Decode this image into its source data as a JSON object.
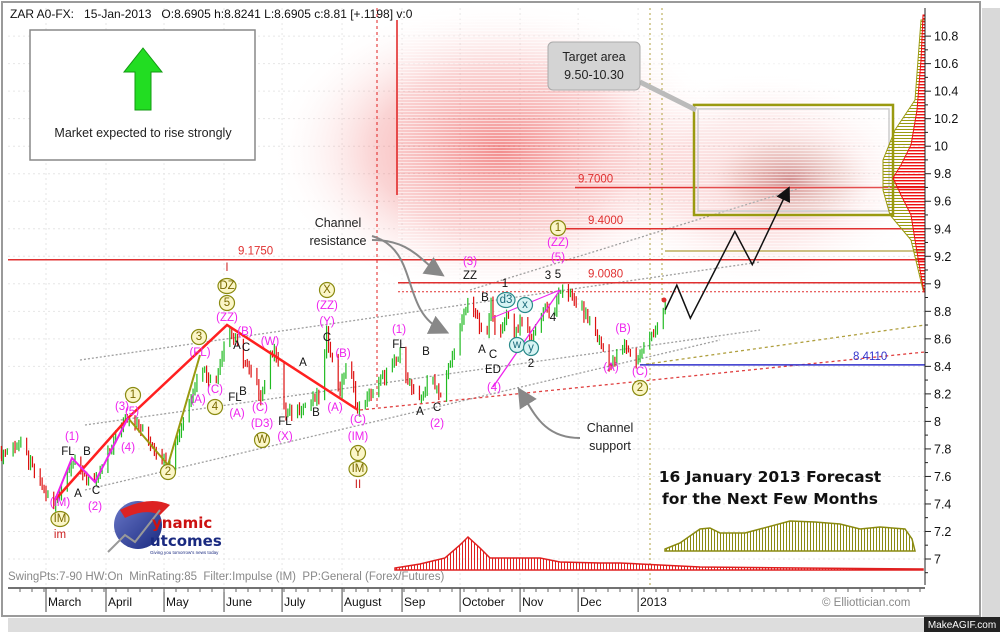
{
  "header": {
    "text": "ZAR A0-FX:   15-Jan-2013   O:8.6905 h:8.8241 L:8.6905 c:8.81 [+.1198] v:0"
  },
  "footer": {
    "settings": "SwingPts:7-90 HW:On  MinRating:85  Filter:Impulse (IM)  PP:General (Forex/Futures)",
    "copyright": "© Elliottician.com"
  },
  "watermark": "MakeAGIF.com",
  "market_box": {
    "text": "Market expected to rise strongly",
    "icon": "green-up-arrow-icon",
    "color": "#22dd22"
  },
  "target_callout": {
    "line1": "Target area",
    "line2": "9.50-10.30"
  },
  "callouts": {
    "resistance": [
      "Channel",
      "resistance"
    ],
    "support": [
      "Channel",
      "support"
    ]
  },
  "forecast_title": [
    "16 January 2013 Forecast",
    "for the Next Few Months"
  ],
  "logo": {
    "text1": "ynamic",
    "text2": "utcomes",
    "letter1": "D",
    "letter2": "O",
    "tagline": "Giving you tomorrow's news today"
  },
  "chart_data": {
    "type": "candlestick",
    "instrument": "ZAR A0-FX",
    "ylim": [
      6.9,
      11.0
    ],
    "yticks": [
      "7",
      "7.2",
      "7.4",
      "7.6",
      "7.8",
      "8",
      "8.2",
      "8.4",
      "8.6",
      "8.8",
      "9",
      "9.2",
      "9.4",
      "9.6",
      "9.8",
      "10",
      "10.2",
      "10.4",
      "10.6",
      "10.8"
    ],
    "x_months": [
      {
        "label": "March",
        "date": "2012-03-01"
      },
      {
        "label": "April",
        "date": "2012-04-01"
      },
      {
        "label": "May",
        "date": "2012-05-01"
      },
      {
        "label": "June",
        "date": "2012-06-01"
      },
      {
        "label": "July",
        "date": "2012-07-01"
      },
      {
        "label": "August",
        "date": "2012-08-01"
      },
      {
        "label": "Sep",
        "date": "2012-09-01"
      },
      {
        "label": "October",
        "date": "2012-10-01"
      },
      {
        "label": "Nov",
        "date": "2012-11-01"
      },
      {
        "label": "Dec",
        "date": "2012-12-01"
      },
      {
        "label": "2013",
        "date": "2013-01-01"
      }
    ],
    "price_swings": [
      [
        "2012-02-06",
        7.76
      ],
      [
        "2012-02-16",
        7.85
      ],
      [
        "2012-02-27",
        7.55
      ],
      [
        "2012-03-05",
        7.39
      ],
      [
        "2012-03-14",
        7.72
      ],
      [
        "2012-03-26",
        7.54
      ],
      [
        "2012-04-11",
        8.05
      ],
      [
        "2012-04-16",
        8.0
      ],
      [
        "2012-05-03",
        7.68
      ],
      [
        "2012-05-20",
        8.41
      ],
      [
        "2012-05-27",
        8.26
      ],
      [
        "2012-06-03",
        8.7
      ],
      [
        "2012-06-20",
        8.19
      ],
      [
        "2012-06-27",
        8.56
      ],
      [
        "2012-07-03",
        8.05
      ],
      [
        "2012-07-21",
        8.19
      ],
      [
        "2012-07-24",
        8.63
      ],
      [
        "2012-07-31",
        8.22
      ],
      [
        "2012-08-04",
        8.48
      ],
      [
        "2012-08-09",
        8.08
      ],
      [
        "2012-08-21",
        8.3
      ],
      [
        "2012-08-31",
        8.48
      ],
      [
        "2012-09-09",
        8.12
      ],
      [
        "2012-09-16",
        8.34
      ],
      [
        "2012-09-21",
        8.19
      ],
      [
        "2012-10-06",
        8.92
      ],
      [
        "2012-10-14",
        8.56
      ],
      [
        "2012-10-17",
        8.85
      ],
      [
        "2012-10-21",
        8.56
      ],
      [
        "2012-10-25",
        8.81
      ],
      [
        "2012-10-28",
        8.63
      ],
      [
        "2012-11-04",
        8.77
      ],
      [
        "2012-11-06",
        8.59
      ],
      [
        "2012-11-14",
        8.85
      ],
      [
        "2012-11-17",
        8.74
      ],
      [
        "2012-11-23",
        8.99
      ],
      [
        "2012-11-29",
        8.88
      ],
      [
        "2012-12-07",
        8.74
      ],
      [
        "2012-12-18",
        8.41
      ],
      [
        "2012-12-25",
        8.56
      ],
      [
        "2012-12-31",
        8.45
      ],
      [
        "2013-01-15",
        8.81
      ]
    ],
    "last_bar": {
      "date": "2013-01-15",
      "open": 8.6905,
      "high": 8.8241,
      "low": 8.6905,
      "close": 8.81,
      "change": 0.1198
    },
    "forecast_path": [
      [
        "2013-01-15",
        8.81
      ],
      [
        "2013-01-21",
        8.99
      ],
      [
        "2013-01-28",
        8.75
      ],
      [
        "2013-02-20",
        9.38
      ],
      [
        "2013-03-01",
        9.14
      ],
      [
        "2013-03-19",
        9.67
      ]
    ],
    "levels": [
      {
        "label": "9.1750",
        "value": 9.175,
        "color": "#e03030"
      },
      {
        "label": "9.0080",
        "value": 9.008,
        "color": "#e03030"
      },
      {
        "label": "9.4000",
        "value": 9.4,
        "color": "#e03030"
      },
      {
        "label": "9.7000",
        "value": 9.7,
        "color": "#e03030"
      },
      {
        "label": "8.4110",
        "value": 8.411,
        "color": "#3333cc"
      }
    ],
    "target_zone": {
      "low": 9.5,
      "high": 10.3,
      "color": "#9a9a10"
    },
    "wave_labels": [
      {
        "t": "(1)",
        "s": "m"
      },
      {
        "t": "FL",
        "s": "k"
      },
      {
        "t": "B",
        "s": "k"
      },
      {
        "t": "A",
        "s": "k"
      },
      {
        "t": "C",
        "s": "k"
      },
      {
        "t": "(2)",
        "s": "m"
      },
      {
        "t": "(IM)",
        "s": "m"
      },
      {
        "t": "IM",
        "s": "o"
      },
      {
        "t": "im",
        "s": "r"
      },
      {
        "t": "(3)",
        "s": "m"
      },
      {
        "t": "(5)",
        "s": "m"
      },
      {
        "t": "1",
        "s": "o"
      },
      {
        "t": "(4)",
        "s": "m"
      },
      {
        "t": "2",
        "s": "o"
      },
      {
        "t": "3",
        "s": "o"
      },
      {
        "t": "(FL)",
        "s": "m"
      },
      {
        "t": "(A)",
        "s": "m"
      },
      {
        "t": "(C)",
        "s": "m"
      },
      {
        "t": "4",
        "s": "o"
      },
      {
        "t": "I",
        "s": "r"
      },
      {
        "t": "DZ",
        "s": "o"
      },
      {
        "t": "5",
        "s": "o"
      },
      {
        "t": "(ZZ)",
        "s": "m"
      },
      {
        "t": "(B)",
        "s": "m"
      },
      {
        "t": "A",
        "s": "k"
      },
      {
        "t": "C",
        "s": "k"
      },
      {
        "t": "FL",
        "s": "k"
      },
      {
        "t": "B",
        "s": "k"
      },
      {
        "t": "(A)",
        "s": "m"
      },
      {
        "t": "(W)",
        "s": "m"
      },
      {
        "t": "(C)",
        "s": "m"
      },
      {
        "t": "(D3)",
        "s": "m"
      },
      {
        "t": "W",
        "s": "o"
      },
      {
        "t": "FL",
        "s": "k"
      },
      {
        "t": "(X)",
        "s": "m"
      },
      {
        "t": "A",
        "s": "k"
      },
      {
        "t": "B",
        "s": "k"
      },
      {
        "t": "(A)",
        "s": "m"
      },
      {
        "t": "C",
        "s": "k"
      },
      {
        "t": "(B)",
        "s": "m"
      },
      {
        "t": "X",
        "s": "o"
      },
      {
        "t": "(ZZ)",
        "s": "m"
      },
      {
        "t": "(Y)",
        "s": "m"
      },
      {
        "t": "(C)",
        "s": "m"
      },
      {
        "t": "(IM)",
        "s": "m"
      },
      {
        "t": "Y",
        "s": "o"
      },
      {
        "t": "IM",
        "s": "o"
      },
      {
        "t": "II",
        "s": "r"
      },
      {
        "t": "(1)",
        "s": "m"
      },
      {
        "t": "FL",
        "s": "k"
      },
      {
        "t": "B",
        "s": "k"
      },
      {
        "t": "A",
        "s": "k"
      },
      {
        "t": "C",
        "s": "k"
      },
      {
        "t": "(2)",
        "s": "m"
      },
      {
        "t": "(3)",
        "s": "m"
      },
      {
        "t": "ZZ",
        "s": "k"
      },
      {
        "t": "B",
        "s": "k"
      },
      {
        "t": "1",
        "s": "k"
      },
      {
        "t": "d3",
        "s": "c"
      },
      {
        "t": "x",
        "s": "c"
      },
      {
        "t": "A",
        "s": "k"
      },
      {
        "t": "C",
        "s": "k"
      },
      {
        "t": "ED",
        "s": "k"
      },
      {
        "t": "(4)",
        "s": "m"
      },
      {
        "t": "w",
        "s": "c"
      },
      {
        "t": "y",
        "s": "c"
      },
      {
        "t": "2",
        "s": "k"
      },
      {
        "t": "3",
        "s": "k"
      },
      {
        "t": "5",
        "s": "k"
      },
      {
        "t": "4",
        "s": "k"
      },
      {
        "t": "1",
        "s": "o"
      },
      {
        "t": "(ZZ)",
        "s": "m"
      },
      {
        "t": "(5)",
        "s": "m"
      },
      {
        "t": "(B)",
        "s": "m"
      },
      {
        "t": "(A)",
        "s": "m"
      },
      {
        "t": "(C)",
        "s": "m"
      },
      {
        "t": "2",
        "s": "o"
      }
    ],
    "colors": {
      "up": "#22bb22",
      "down": "#dd1111",
      "wave_red": "#ff2020",
      "wave_magenta": "#ee22ee",
      "wave_olive": "#9a9a10",
      "channel": "#a0a0a0"
    },
    "grid": true
  }
}
